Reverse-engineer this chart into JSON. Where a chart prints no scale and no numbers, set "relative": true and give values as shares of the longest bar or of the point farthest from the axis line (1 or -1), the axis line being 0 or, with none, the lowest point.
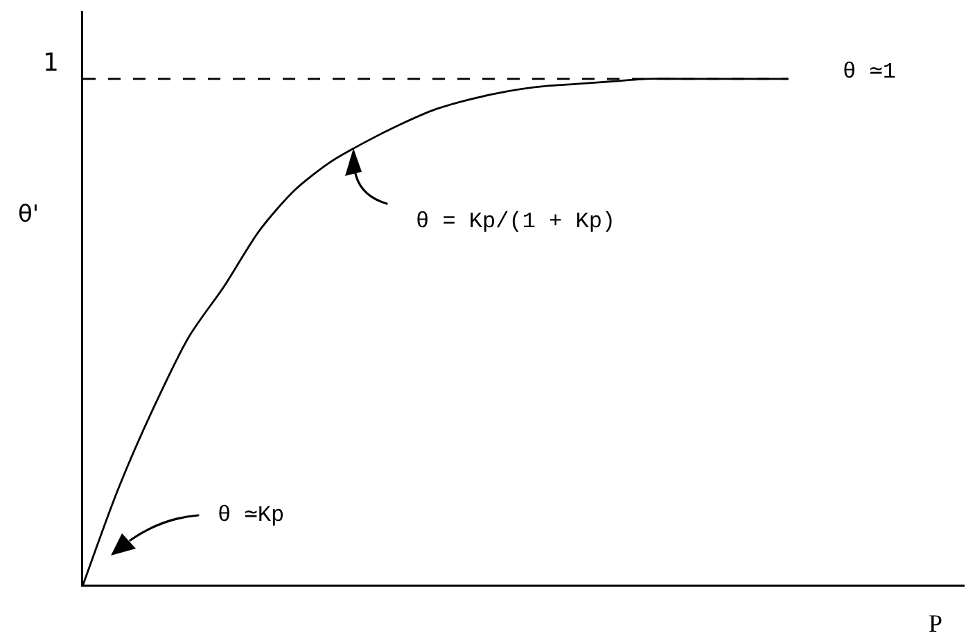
{
  "chart_data": {
    "type": "line",
    "relative": true,
    "xlabel": "P",
    "ylabel": "θ'",
    "categories": [
      null,
      null,
      null,
      null,
      null,
      null,
      null,
      null,
      null,
      null,
      null,
      null,
      null,
      null,
      null,
      null,
      null,
      null,
      null,
      null,
      null,
      null,
      null,
      null,
      null,
      null
    ],
    "series": [
      {
        "color": "#000000",
        "values": [
          0,
          0.19,
          0.35,
          0.49,
          0.59,
          0.7,
          0.78,
          0.835,
          0.875,
          0.91,
          0.94,
          0.96,
          0.975,
          0.985,
          0.99,
          0.995,
          1,
          1,
          1,
          1,
          1,
          null,
          null,
          null,
          null,
          null
        ]
      }
    ],
    "ref_lines": [
      {
        "axis": "y",
        "value": 1,
        "label": "1",
        "color": "#000000",
        "line_style": "dashed"
      }
    ],
    "annotations": [
      "θ = Kp/(1 + Kp)",
      "θ ≃Kp",
      "θ ≃1"
    ]
  }
}
